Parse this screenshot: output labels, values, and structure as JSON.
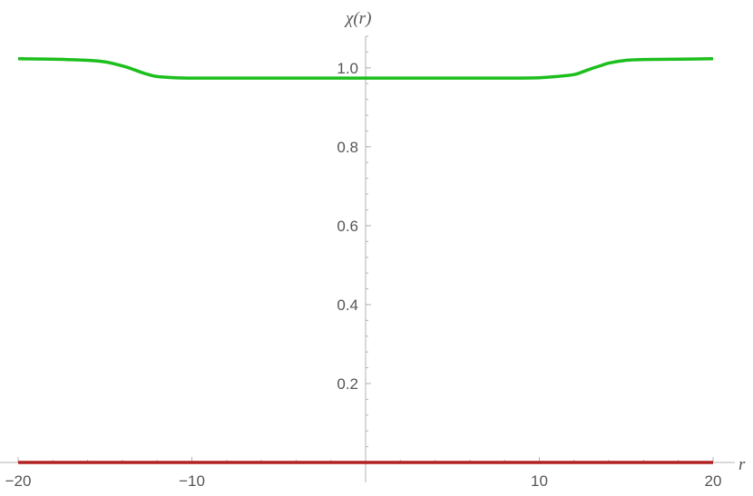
{
  "chart_data": {
    "type": "line",
    "xlabel": "r",
    "ylabel": "χ(r)",
    "xlim": [
      -20,
      20
    ],
    "ylim": [
      0,
      1.08
    ],
    "grid": false,
    "x_ticks": [
      {
        "value": -20,
        "label": "−20"
      },
      {
        "value": -10,
        "label": "−10"
      },
      {
        "value": 10,
        "label": "10"
      },
      {
        "value": 20,
        "label": "20"
      }
    ],
    "y_ticks": [
      {
        "value": 0.2,
        "label": "0.2"
      },
      {
        "value": 0.4,
        "label": "0.4"
      },
      {
        "value": 0.6,
        "label": "0.6"
      },
      {
        "value": 0.8,
        "label": "0.8"
      },
      {
        "value": 1.0,
        "label": "1.0"
      }
    ],
    "series": [
      {
        "color": "#1cbf1c",
        "x": [
          -20,
          -18,
          -16,
          -15,
          -14,
          -13.5,
          -13,
          -12.5,
          -12,
          -11,
          -10,
          -8,
          -4,
          0,
          4,
          8,
          10,
          11,
          12,
          12.5,
          13,
          13.5,
          14,
          15,
          16,
          18,
          20
        ],
        "y": [
          1.023,
          1.022,
          1.019,
          1.015,
          1.005,
          0.998,
          0.99,
          0.983,
          0.978,
          0.975,
          0.974,
          0.974,
          0.974,
          0.974,
          0.974,
          0.974,
          0.975,
          0.978,
          0.983,
          0.99,
          0.998,
          1.005,
          1.012,
          1.019,
          1.021,
          1.022,
          1.023
        ]
      },
      {
        "color": "#b22222",
        "x": [
          -20,
          20
        ],
        "y": [
          0,
          0
        ]
      }
    ]
  }
}
